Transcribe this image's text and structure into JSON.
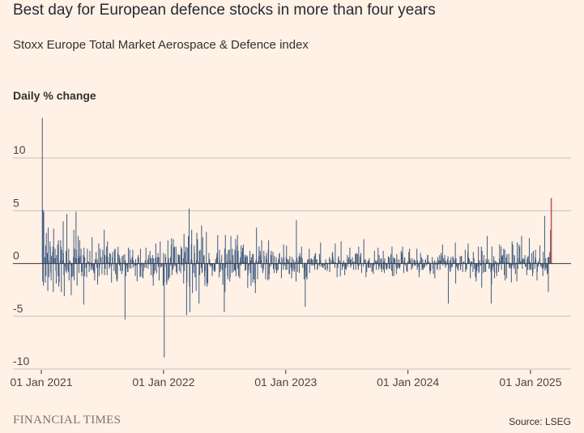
{
  "header": {
    "title": "Best day for European defence stocks in more than four years",
    "subtitle": "Stoxx Europe Total Market Aerospace & Defence index"
  },
  "footer": {
    "logo": "FINANCIAL TIMES",
    "source": "Source: LSEG"
  },
  "colors": {
    "background": "#fff1e5",
    "bar": "#3d5a80",
    "highlight": "#c7515a",
    "grid": "#c9c1b7",
    "zero": "#3a3633"
  },
  "chart_data": {
    "type": "bar",
    "title": "Best day for European defence stocks in more than four years",
    "subtitle": "Stoxx Europe Total Market Aerospace & Defence index",
    "ylabel": "Daily % change",
    "xlabel": "",
    "ylim": [
      -10,
      14
    ],
    "yticks": [
      10,
      5,
      0,
      -5,
      -10
    ],
    "xlim": [
      "2021-01-01",
      "2025-03-05"
    ],
    "xticks": [
      {
        "date": "2021-01-01",
        "label": "01 Jan 2021"
      },
      {
        "date": "2022-01-01",
        "label": "01 Jan 2022"
      },
      {
        "date": "2023-01-01",
        "label": "01 Jan 2023"
      },
      {
        "date": "2024-01-01",
        "label": "01 Jan 2024"
      },
      {
        "date": "2025-01-01",
        "label": "01 Jan 2025"
      }
    ],
    "series": [
      {
        "name": "Daily % change",
        "start_date": "2021-01-04",
        "frequency": "trading-day",
        "values": [
          13.8,
          -1.7,
          5.1,
          -2.1,
          4.9,
          0.6,
          -1.8,
          1.7,
          -1.2,
          2.9,
          1.0,
          -2.6,
          3.4,
          0.3,
          -1.3,
          2.1,
          1.6,
          -0.9,
          -1.6,
          0.7,
          1.1,
          1.6,
          -2.7,
          3.3,
          0.5,
          1.4,
          0.5,
          -0.7,
          -1.9,
          0.8,
          1.8,
          -1.2,
          2.2,
          -2.2,
          -1.8,
          0.3,
          2.2,
          1.6,
          -2.7,
          1.3,
          0.3,
          4.0,
          1.0,
          -1.1,
          -3.1,
          -0.3,
          -0.7,
          1.2,
          -0.9,
          4.7,
          -0.6,
          -0.8,
          1.4,
          -1.6,
          0.3,
          0.2,
          -0.2,
          -3.0,
          -0.3,
          -1.3,
          -1.2,
          0.6,
          3.2,
          -1.6,
          1.4,
          0.5,
          4.9,
          1.3,
          0.5,
          -2.1,
          2.6,
          0.7,
          -0.9,
          0.5,
          2.2,
          0.7,
          1.4,
          -0.8,
          -1.2,
          -0.8,
          0.8,
          -3.9,
          1.5,
          -1.2,
          0.6,
          -0.4,
          -0.1,
          -1.3,
          0.1,
          1.4,
          0.2,
          0.1,
          -0.8,
          -0.2,
          1.2,
          -0.6,
          0.1,
          -0.3,
          2.5,
          -0.6,
          -0.7,
          -0.9,
          -0.1,
          -1.6,
          0.4,
          1.1,
          0.0,
          -0.4,
          0.4,
          -2.0,
          1.9,
          -1.2,
          -0.5,
          -0.2,
          1.4,
          0.6,
          0.0,
          -1.0,
          -0.1,
          1.3,
          0.1,
          3.2,
          -1.1,
          0.8,
          -0.5,
          1.6,
          0.7,
          -1.1,
          2.1,
          0.6,
          0.1,
          -0.5,
          1.0,
          -0.3,
          0.9,
          -1.8,
          -0.2,
          0.6,
          1.1,
          0.0,
          -0.7,
          1.3,
          0.5,
          1.4,
          -1.0,
          -1.5,
          -1.7,
          -1.5,
          1.0,
          1.6,
          0.8,
          -0.2,
          0.5,
          -0.7,
          0.1,
          -1.0,
          0.7,
          -0.7,
          0.0,
          0.8,
          -0.1,
          0.9,
          -5.3,
          0.3,
          -1.2,
          -0.2,
          -0.5,
          -0.8,
          -0.8,
          1.5,
          -0.4,
          1.3,
          0.1,
          0.4,
          -0.5,
          0.6,
          0.1,
          1.3,
          -0.4,
          0.3,
          -0.2,
          0.0,
          -1.2,
          0.4,
          -0.2,
          -1.7,
          -0.1,
          0.6,
          0.8,
          0.5,
          -0.1,
          -1.3,
          1.4,
          -1.2,
          -0.3,
          0.1,
          -1.3,
          -1.4,
          -0.7,
          -0.1,
          -0.4,
          0.3,
          0.0,
          1.5,
          -0.4,
          0.0,
          0.4,
          -0.5,
          0.8,
          0.0,
          1.2,
          0.6,
          -0.2,
          -1.1,
          0.5,
          0.8,
          -1.3,
          -2.1,
          0.5,
          -1.0,
          -0.7,
          0.5,
          1.9,
          0.6,
          -0.9,
          0.6,
          1.0,
          -0.3,
          0.6,
          -1.6,
          2.1,
          -0.4,
          -0.2,
          -0.3,
          -0.1,
          -0.3,
          -2.1,
          1.0,
          -1.8,
          -8.9,
          0.9,
          0.6,
          -0.3,
          -1.8,
          -2.0,
          2.2,
          -1.6,
          0.5,
          -1.4,
          -1.3,
          0.6,
          -0.2,
          1.8,
          2.4,
          -1.1,
          -0.6,
          2.3,
          1.5,
          -0.3,
          1.6,
          -0.2,
          1.6,
          -0.8,
          -0.1,
          -1.0,
          0.9,
          0.6,
          0.8,
          -0.7,
          0.8,
          -0.9,
          1.6,
          1.4,
          1.4,
          -0.2,
          0.5,
          -1.9,
          2.8,
          -0.7,
          1.1,
          1.6,
          0.2,
          -4.9,
          -1.8,
          1.5,
          2.6,
          1.6,
          5.2,
          -2.2,
          -4.6,
          0.4,
          1.8,
          3.2,
          0.3,
          -2.8,
          -0.9,
          -0.2,
          1.7,
          1.0,
          -1.3,
          -2.6,
          0.3,
          2.9,
          0.3,
          2.3,
          0.1,
          -3.8,
          1.2,
          -1.1,
          1.3,
          -0.4,
          3.6,
          -0.9,
          -0.8,
          2.5,
          0.7,
          0.8,
          -1.2,
          -2.1,
          -0.7,
          3.0,
          -1.8,
          -2.2,
          0.0,
          -1.9,
          1.0,
          -0.1,
          0.4,
          -0.1,
          -0.3,
          -0.2,
          -0.3,
          -1.2,
          -0.6,
          0.0,
          -0.7,
          -0.6,
          -0.8,
          -0.7,
          0.4,
          0.6,
          1.0,
          0.6,
          2.7,
          0.0,
          -1.3,
          1.3,
          0.4,
          -0.8,
          -0.5,
          0.8,
          -0.6,
          -0.4,
          -2.0,
          -0.1,
          -4.6,
          1.4,
          -2.7,
          2.7,
          -0.4,
          0.9,
          0.2,
          -1.2,
          -1.5,
          1.3,
          1.3,
          -1.7,
          -1.3,
          0.3,
          2.6,
          -0.9,
          1.4,
          0.6,
          0.8,
          -0.8,
          -0.6,
          1.3,
          -0.7,
          2.3,
          -1.2,
          1.7,
          2.7,
          -0.5,
          1.2,
          -1.2,
          -1.4,
          0.2,
          0.6,
          -0.2,
          1.7,
          1.1,
          1.5,
          1.0,
          1.8,
          0.2,
          0.8,
          -0.7,
          0.6,
          -0.6,
          0.8,
          0.7,
          -2.3,
          -1.1,
          -0.6,
          -0.2,
          1.2,
          -0.9,
          0.3,
          -2.1,
          0.6,
          0.9,
          -1.8,
          0.9,
          0.2,
          -1.5,
          -1.9,
          -2.8,
          0.2,
          0.4,
          3.4,
          -1.5,
          0.2,
          0.2,
          0.7,
          1.6,
          1.2,
          0.8,
          0.3,
          -0.4,
          2.2,
          -0.9,
          -0.7,
          -0.5,
          1.2,
          0.7,
          -0.1,
          -1.5,
          0.7,
          1.0,
          0.4,
          -1.6,
          1.3,
          2.2,
          -1.5,
          -1.0,
          -0.3,
          0.8,
          1.2,
          0.8,
          -0.1,
          1.1,
          -0.5,
          -0.3,
          -0.9,
          0.7,
          -0.2,
          -0.6,
          0.6,
          -0.9,
          -0.7,
          -0.6,
          0.4,
          0.3,
          0.9,
          1.0,
          0.1,
          -0.1,
          -1.4,
          0.6,
          0.4,
          -0.6,
          1.8,
          0.6,
          -0.2,
          0.1,
          -0.6,
          0.6,
          1.7,
          -0.6,
          0.4,
          0.4,
          0.2,
          -1.0,
          -1.0,
          0.7,
          -0.4,
          0.1,
          -1.4,
          0.6,
          -0.7,
          0.4,
          -0.5,
          -0.8,
          -0.6,
          0.2,
          -1.7,
          4.1,
          0.6,
          0.4,
          -0.8,
          0.2,
          0.7,
          -0.9,
          1.0,
          0.6,
          0.7,
          1.6,
          0.2,
          0.5,
          -0.4,
          0.0,
          -1.5,
          -0.7,
          0.1,
          -4.1,
          -1.3,
          -0.2,
          -1.5,
          0.3,
          0.4,
          0.4,
          1.4,
          -0.9,
          0.1,
          0.4,
          0.5,
          -0.2,
          -0.2,
          0.3,
          0.4,
          -0.2,
          0.7,
          -0.6,
          0.9,
          1.0,
          0.4,
          0.4,
          -0.6,
          -0.5,
          -0.1,
          -0.1,
          0.9,
          -0.3,
          0.3,
          2.0,
          -0.3,
          -0.1,
          -0.2,
          -0.4,
          -0.4,
          -0.1,
          -0.2,
          -0.6,
          -0.6,
          0.4,
          0.1,
          -0.7,
          -0.5,
          0.0,
          0.0,
          0.6,
          -0.8,
          -0.1,
          0.4,
          0.0,
          0.2,
          1.0,
          1.1,
          0.6,
          0.3,
          0.1,
          -0.4,
          1.9,
          0.1,
          0.0,
          -1.3,
          -0.1,
          -0.4,
          0.5,
          0.7,
          0.3,
          0.0,
          -1.2,
          0.1,
          2.1,
          -0.6,
          -0.3,
          0.1,
          -0.3,
          0.3,
          -1.1,
          0.1,
          -0.5,
          0.0,
          -0.6,
          0.8,
          -0.3,
          0.0,
          0.4,
          0.6,
          1.5,
          0.4,
          -0.4,
          0.4,
          -0.2,
          0.6,
          0.2,
          -0.1,
          -0.6,
          0.2,
          0.1,
          0.9,
          -0.6,
          1.0,
          0.9,
          0.9,
          -0.3,
          -0.6,
          1.6,
          -0.2,
          0.6,
          0.8,
          1.0,
          -0.2,
          -0.9,
          0.0,
          0.0,
          -0.3,
          2.3,
          0.4,
          0.3,
          0.4,
          -1.3,
          -0.4,
          -0.8,
          0.2,
          -0.4,
          0.3,
          -0.4,
          0.5,
          -0.4,
          -0.1,
          0.0,
          0.0,
          -0.8,
          -0.7,
          -1.0,
          0.1,
          -0.2,
          1.2,
          0.3,
          0.2,
          -0.6,
          0.1,
          0.3,
          1.5,
          -0.2,
          -0.6,
          0.8,
          -0.3,
          0.4,
          -0.5,
          0.5,
          -0.8,
          -0.5,
          1.2,
          -0.6,
          0.2,
          -0.9,
          0.5,
          -0.2,
          -0.5,
          -0.1,
          -0.6,
          -0.4,
          0.7,
          0.5,
          -0.5,
          0.6,
          -0.5,
          0.9,
          0.2,
          -0.7,
          1.6,
          -1.2,
          0.6,
          -1.2,
          0.5,
          0.5,
          0.4,
          -0.3,
          -1.0,
          0.9,
          0.4,
          -0.5,
          -0.4,
          0.4,
          -0.2,
          -0.5,
          -0.3,
          1.2,
          0.9,
          1.0,
          0.6,
          1.6,
          -0.9,
          0.2,
          0.6,
          0.5,
          -0.2,
          0.0,
          -0.7,
          -0.2,
          -0.8,
          0.2,
          1.1,
          0.5,
          1.4,
          0.5,
          0.3,
          -0.6,
          0.3,
          0.5,
          -0.4,
          -0.2,
          0.4,
          0.3,
          -0.2,
          0.3,
          -0.2,
          0.1,
          1.4,
          -0.6,
          0.3,
          -0.3,
          -1.3,
          -0.8,
          0.2,
          0.0,
          1.0,
          0.6,
          -0.6,
          -0.4,
          0.4,
          -0.6,
          -0.4,
          -0.4,
          -0.2,
          0.3,
          0.4,
          -0.2,
          0.1,
          0.8,
          0.8,
          0.1,
          0.2,
          -0.7,
          -1.0,
          -0.3,
          -0.7,
          0.0,
          0.6,
          0.2,
          -0.5,
          -1.0,
          0.3,
          -1.4,
          -0.1,
          -0.1,
          0.2,
          -0.5,
          -0.6,
          0.6,
          -0.1,
          0.3,
          0.8,
          -0.6,
          0.3,
          0.0,
          1.0,
          0.7,
          1.8,
          -0.2,
          -0.1,
          0.5,
          0.8,
          0.3,
          -0.4,
          0.2,
          -0.2,
          0.4,
          -0.1,
          0.7,
          -3.8,
          -0.5,
          0.3,
          -0.8,
          -0.7,
          0.6,
          -0.4,
          -0.3,
          0.7,
          0.5,
          0.5,
          0.1,
          0.3,
          2.0,
          -1.9,
          0.5,
          -0.3,
          -0.5,
          -0.5,
          -0.7,
          -0.2,
          -0.1,
          0.7,
          -0.6,
          -0.3,
          0.7,
          0.7,
          -0.8,
          0.1,
          0.1,
          0.2,
          0.1,
          1.3,
          -0.8,
          -0.3,
          -0.6,
          -0.5,
          1.1,
          1.9,
          0.6,
          0.5,
          0.4,
          -1.4,
          0.2,
          -0.3,
          -0.1,
          0.2,
          -0.8,
          1.1,
          0.1,
          0.5,
          -0.5,
          -1.3,
          -0.3,
          -1.7,
          -0.7,
          -0.7,
          -0.3,
          1.6,
          -0.9,
          -0.8,
          0.3,
          -0.2,
          -0.2,
          1.6,
          -2.3,
          1.2,
          -0.9,
          0.3,
          0.8,
          -0.1,
          -0.8,
          -0.8,
          0.4,
          0.2,
          0.1,
          2.6,
          0.1,
          0.4,
          -0.5,
          -0.4,
          0.1,
          -0.8,
          -3.8,
          -2.0,
          1.6,
          -0.6,
          -0.3,
          0.7,
          -0.8,
          -1.4,
          0.3,
          0.2,
          -0.9,
          -1.2,
          -0.2,
          0.1,
          -0.8,
          -0.3,
          0.5,
          1.8,
          0.2,
          1.6,
          -0.6,
          0.7,
          0.4,
          0.8,
          1.4,
          0.2,
          -1.1,
          1.3,
          -1.6,
          0.6,
          -1.4,
          0.9,
          0.1,
          0.1,
          0.9,
          -0.4,
          0.1,
          -0.2,
          -0.5,
          -1.8,
          -0.4,
          2.1,
          -0.2,
          1.8,
          -0.5,
          0.8,
          0.7,
          -0.2,
          -1.0,
          0.1,
          -1.7,
          2.0,
          0.5,
          -0.5,
          1.8,
          0.5,
          1.6,
          -0.1,
          0.2,
          2.6,
          0.3,
          -0.5,
          0.4,
          0.5,
          0.4,
          0.0,
          0.8,
          -0.3,
          -0.3,
          -1.1,
          0.4,
          0.6,
          -0.6,
          0.7,
          2.4,
          -0.6,
          0.2,
          -0.4,
          -0.6,
          1.0,
          -0.6,
          -1.2,
          -0.9,
          1.2,
          0.1,
          -0.5,
          0.6,
          1.3,
          0.4,
          -1.6,
          -0.8,
          -0.1,
          0.2,
          -0.3,
          0.5,
          1.7,
          0.1,
          -0.2,
          -0.3,
          -0.5,
          -0.2,
          -1.2,
          1.1,
          -0.4,
          4.5,
          -0.7,
          -0.4,
          0.5,
          -0.5,
          -1.0,
          -0.9,
          0.6,
          -2.7,
          0.6,
          1.1,
          0.8,
          3.2,
          1.6,
          6.2
        ]
      }
    ],
    "highlight": {
      "index": -1,
      "value": 6.2,
      "color": "#c7515a"
    }
  }
}
